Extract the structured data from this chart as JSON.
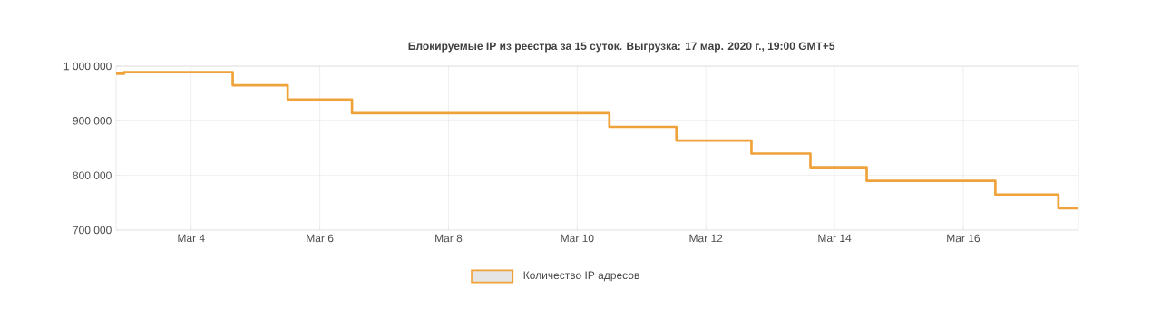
{
  "chart_data": {
    "type": "step",
    "title": "Блокируемые IP из реестра за 15 суток. Выгрузка: 17 мар. 2020 г., 19:00 GMT+5",
    "x": [
      "2020-03-02T20:00",
      "2020-03-02T23:00",
      "2020-03-04T15:30",
      "2020-03-05T12:00",
      "2020-03-06T12:00",
      "2020-03-10T12:00",
      "2020-03-11T13:00",
      "2020-03-12T17:00",
      "2020-03-13T15:00",
      "2020-03-14T12:00",
      "2020-03-16T12:00",
      "2020-03-17T11:30",
      "2020-03-17T19:00"
    ],
    "series": [
      {
        "name": "Количество IP адресов",
        "color": "#f0a23a",
        "values": [
          986000,
          989000,
          965000,
          939000,
          914000,
          889000,
          864000,
          840000,
          815000,
          790000,
          765000,
          740000,
          740000
        ]
      }
    ],
    "xlim": [
      "2020-03-02T20:00",
      "2020-03-17T19:00"
    ],
    "xticks": [
      {
        "value": "2020-03-04",
        "label": "Mar 4"
      },
      {
        "value": "2020-03-06",
        "label": "Mar 6"
      },
      {
        "value": "2020-03-08",
        "label": "Mar 8"
      },
      {
        "value": "2020-03-10",
        "label": "Mar 10"
      },
      {
        "value": "2020-03-12",
        "label": "Mar 12"
      },
      {
        "value": "2020-03-14",
        "label": "Mar 14"
      },
      {
        "value": "2020-03-16",
        "label": "Mar 16"
      }
    ],
    "ylim": [
      700000,
      1000000
    ],
    "yticks": [
      {
        "value": 700000,
        "label": "700 000"
      },
      {
        "value": 800000,
        "label": "800 000"
      },
      {
        "value": 900000,
        "label": "900 000"
      },
      {
        "value": 1000000,
        "label": "1 000 000"
      }
    ],
    "grid": true,
    "legend": "bottom",
    "line_style": "solid"
  }
}
